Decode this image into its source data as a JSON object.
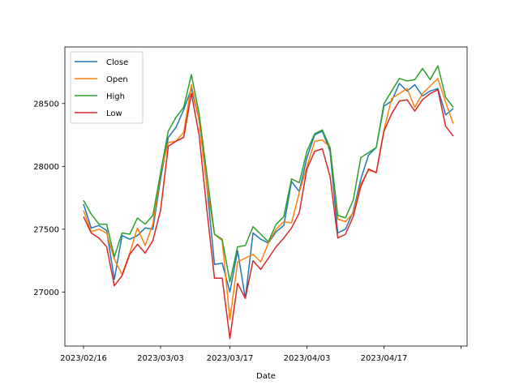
{
  "chart_data": {
    "type": "line",
    "title": "",
    "xlabel": "Date",
    "ylabel": "",
    "x_tick_labels": [
      "2023/02/16",
      "2023/03/03",
      "2023/03/17",
      "2023/04/03",
      "2023/04/17"
    ],
    "y_tick_labels": [
      "27000",
      "27500",
      "28000",
      "28500"
    ],
    "y_ticks": [
      27000,
      27500,
      28000,
      28500
    ],
    "ylim": [
      26570,
      28950
    ],
    "grid": false,
    "legend": "top-left",
    "series": [
      {
        "name": "Close",
        "color": "#1f77b4",
        "values": [
          27700,
          27510,
          27530,
          27490,
          27100,
          27450,
          27420,
          27450,
          27510,
          27500,
          27900,
          28230,
          28310,
          28450,
          28620,
          28370,
          27850,
          27220,
          27230,
          27000,
          27330,
          26950,
          27470,
          27420,
          27390,
          27480,
          27530,
          27880,
          27800,
          28070,
          28250,
          28280,
          28120,
          27470,
          27500,
          27640,
          27900,
          28090,
          28150,
          28480,
          28520,
          28660,
          28600,
          28650,
          28560,
          28600,
          28620,
          28410,
          28460
        ]
      },
      {
        "name": "Open",
        "color": "#ff7f0e",
        "values": [
          27650,
          27480,
          27500,
          27470,
          27260,
          27140,
          27310,
          27510,
          27370,
          27540,
          27940,
          28190,
          28200,
          28270,
          28650,
          28370,
          27850,
          27460,
          27410,
          26780,
          27240,
          27270,
          27300,
          27240,
          27390,
          27500,
          27560,
          27550,
          27790,
          28000,
          28200,
          28210,
          28150,
          27580,
          27560,
          27630,
          27860,
          27970,
          27950,
          28290,
          28540,
          28580,
          28620,
          28470,
          28580,
          28640,
          28700,
          28510,
          28340
        ]
      },
      {
        "name": "High",
        "color": "#2ca02c",
        "values": [
          27730,
          27620,
          27540,
          27540,
          27280,
          27470,
          27460,
          27590,
          27540,
          27610,
          27950,
          28280,
          28390,
          28470,
          28730,
          28420,
          27940,
          27460,
          27420,
          27080,
          27360,
          27370,
          27520,
          27460,
          27400,
          27540,
          27600,
          27900,
          27870,
          28120,
          28260,
          28290,
          28150,
          27610,
          27590,
          27730,
          28070,
          28110,
          28150,
          28500,
          28600,
          28700,
          28680,
          28690,
          28780,
          28690,
          28800,
          28550,
          28470
        ]
      },
      {
        "name": "Low",
        "color": "#d62728",
        "values": [
          27600,
          27470,
          27430,
          27360,
          27050,
          27130,
          27300,
          27380,
          27310,
          27410,
          27650,
          28160,
          28200,
          28230,
          28580,
          28250,
          27660,
          27110,
          27110,
          26630,
          27070,
          26950,
          27250,
          27180,
          27270,
          27360,
          27430,
          27510,
          27630,
          27980,
          28120,
          28140,
          27920,
          27430,
          27460,
          27600,
          27840,
          27980,
          27950,
          28280,
          28420,
          28520,
          28530,
          28440,
          28530,
          28580,
          28610,
          28320,
          28240
        ]
      }
    ]
  }
}
